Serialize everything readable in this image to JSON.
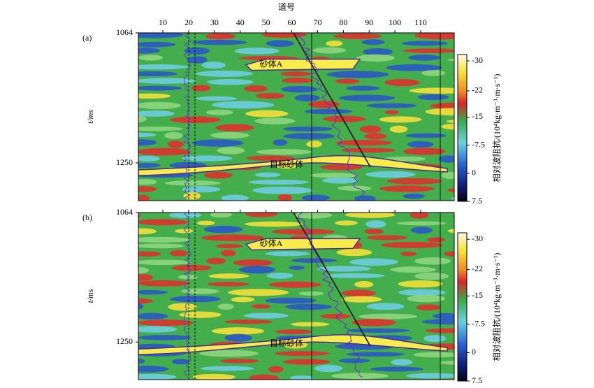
{
  "figure": {
    "xlabel": "道号",
    "panels": [
      {
        "label": "(a)",
        "ylabel": "t/ms",
        "xlim": [
          0.5,
          123
        ],
        "xticks": [
          10,
          20,
          30,
          40,
          50,
          60,
          70,
          80,
          90,
          100,
          110
        ],
        "ylim": [
          1064,
          1304
        ],
        "yticks": [
          1064,
          1250
        ],
        "annotations": [
          "砂体A",
          "目标砂体"
        ]
      },
      {
        "label": "(b)",
        "ylabel": "t/ms",
        "ylim": [
          1064,
          1304
        ],
        "yticks": [
          1064,
          1250
        ],
        "annotations": [
          "砂体A",
          "目标砂体"
        ]
      }
    ],
    "colorbar": {
      "label": "相对波阻抗/(10⁴kg·m⁻³·m·s⁻¹)",
      "lim": [
        -31.7,
        7.5
      ],
      "ticks": [
        -30,
        -22,
        -15,
        -7.5,
        0,
        7.5
      ]
    }
  }
}
